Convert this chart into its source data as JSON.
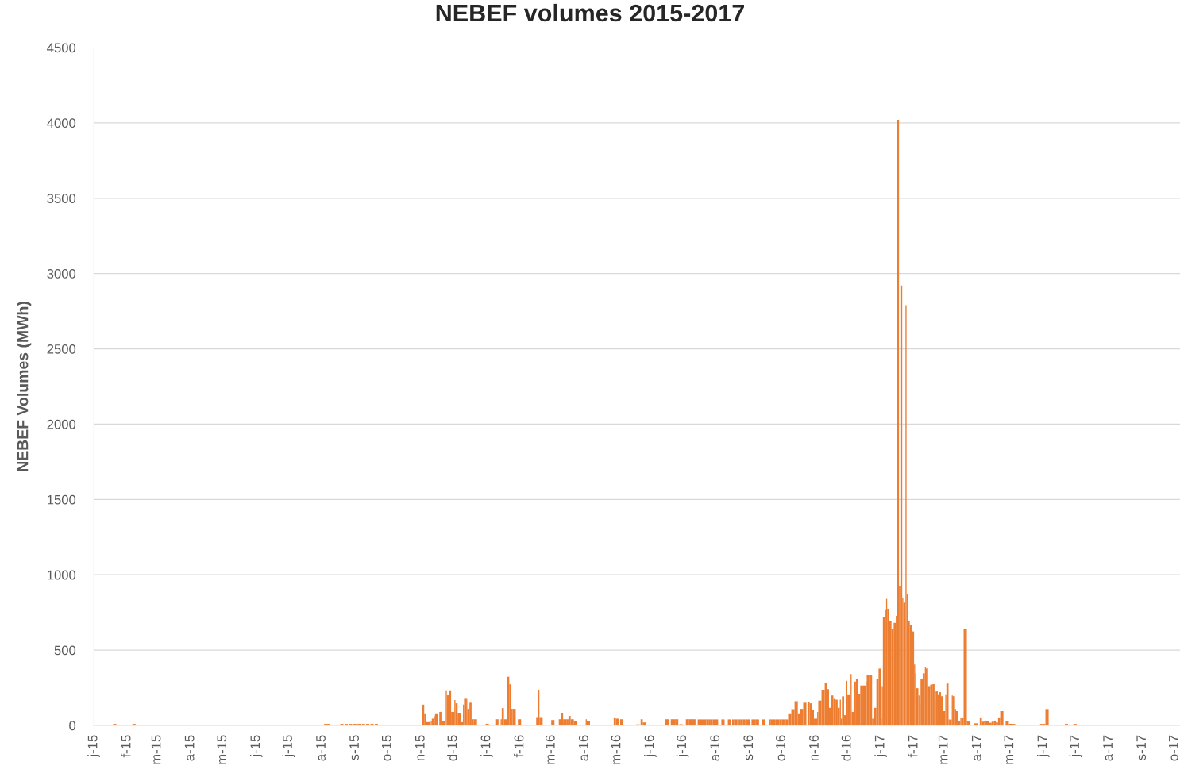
{
  "chart_data": {
    "type": "bar",
    "title": "NEBEF volumes 2015-2017",
    "ylabel": "NEBEF Volumes (MWh)",
    "x": [
      "2015-01-19",
      "2015-02-06",
      "2015-08-03",
      "2015-08-05",
      "2015-08-18",
      "2015-08-22",
      "2015-08-26",
      "2015-08-30",
      "2015-09-03",
      "2015-09-07",
      "2015-09-11",
      "2015-09-15",
      "2015-09-19",
      "2015-11-02",
      "2015-11-04",
      "2015-11-06",
      "2015-11-10",
      "2015-11-11",
      "2015-11-13",
      "2015-11-14",
      "2015-11-18",
      "2015-11-20",
      "2015-11-24",
      "2015-11-25",
      "2015-11-27",
      "2015-11-29",
      "2015-12-02",
      "2015-12-03",
      "2015-12-05",
      "2015-12-08",
      "2015-12-10",
      "2015-12-11",
      "2015-12-13",
      "2015-12-14",
      "2015-12-16",
      "2015-12-18",
      "2015-12-20",
      "2015-12-31",
      "2016-01-09",
      "2016-01-14",
      "2016-01-15",
      "2016-01-17",
      "2016-01-20",
      "2016-01-22",
      "2016-01-24",
      "2016-01-25",
      "2016-01-30",
      "2016-02-16",
      "2016-02-18",
      "2016-02-19",
      "2016-03-01",
      "2016-03-08",
      "2016-03-10",
      "2016-03-12",
      "2016-03-15",
      "2016-03-17",
      "2016-03-19",
      "2016-03-21",
      "2016-03-22",
      "2016-04-02",
      "2016-04-03",
      "2016-04-28",
      "2016-04-30",
      "2016-05-04",
      "2016-05-19",
      "2016-05-23",
      "2016-05-25",
      "2016-06-15",
      "2016-06-20",
      "2016-06-22",
      "2016-06-24",
      "2016-06-28",
      "2016-07-04",
      "2016-07-07",
      "2016-07-10",
      "2016-07-15",
      "2016-07-17",
      "2016-07-19",
      "2016-07-21",
      "2016-07-23",
      "2016-07-25",
      "2016-07-27",
      "2016-07-29",
      "2016-07-31",
      "2016-08-06",
      "2016-08-12",
      "2016-08-16",
      "2016-08-18",
      "2016-08-22",
      "2016-08-24",
      "2016-08-26",
      "2016-08-28",
      "2016-08-30",
      "2016-09-03",
      "2016-09-05",
      "2016-09-07",
      "2016-09-13",
      "2016-09-19",
      "2016-09-21",
      "2016-09-23",
      "2016-09-25",
      "2016-09-27",
      "2016-09-29",
      "2016-10-01",
      "2016-10-03",
      "2016-10-05",
      "2016-10-07",
      "2016-10-10",
      "2016-10-13",
      "2016-10-16",
      "2016-10-18",
      "2016-10-21",
      "2016-10-25",
      "2016-10-27",
      "2016-10-29",
      "2016-10-31",
      "2016-11-03",
      "2016-11-04",
      "2016-11-07",
      "2016-11-10",
      "2016-11-12",
      "2016-11-14",
      "2016-11-16",
      "2016-11-18",
      "2016-11-20",
      "2016-11-22",
      "2016-11-24",
      "2016-11-25",
      "2016-11-26",
      "2016-11-28",
      "2016-11-30",
      "2016-12-01",
      "2016-12-04",
      "2016-12-05",
      "2016-12-07",
      "2016-12-09",
      "2016-12-11",
      "2016-12-13",
      "2016-12-15",
      "2016-12-18",
      "2016-12-19",
      "2016-12-21",
      "2016-12-24",
      "2016-12-26",
      "2016-12-28",
      "2016-12-30",
      "2017-01-01",
      "2017-01-02",
      "2017-01-03",
      "2017-01-05",
      "2017-01-06",
      "2017-01-07",
      "2017-01-09",
      "2017-01-11",
      "2017-01-13",
      "2017-01-15",
      "2017-01-16",
      "2017-01-18",
      "2017-01-20",
      "2017-01-21",
      "2017-01-22",
      "2017-01-24",
      "2017-01-25",
      "2017-01-26",
      "2017-01-28",
      "2017-01-30",
      "2017-02-01",
      "2017-02-02",
      "2017-02-03",
      "2017-02-05",
      "2017-02-06",
      "2017-02-07",
      "2017-02-09",
      "2017-02-11",
      "2017-02-12",
      "2017-02-14",
      "2017-02-16",
      "2017-02-18",
      "2017-02-20",
      "2017-02-21",
      "2017-02-23",
      "2017-02-24",
      "2017-02-26",
      "2017-02-28",
      "2017-03-02",
      "2017-03-03",
      "2017-03-05",
      "2017-03-06",
      "2017-03-08",
      "2017-03-09",
      "2017-03-11",
      "2017-03-12",
      "2017-03-14",
      "2017-03-16",
      "2017-03-17",
      "2017-03-19",
      "2017-03-22",
      "2017-03-29",
      "2017-04-03",
      "2017-04-05",
      "2017-04-07",
      "2017-04-09",
      "2017-04-12",
      "2017-04-14",
      "2017-04-16",
      "2017-04-18",
      "2017-04-20",
      "2017-04-22",
      "2017-04-27",
      "2017-04-30",
      "2017-05-03",
      "2017-05-29",
      "2017-05-31",
      "2017-06-03",
      "2017-06-21",
      "2017-06-29"
    ],
    "values": [
      10,
      10,
      10,
      10,
      10,
      10,
      10,
      10,
      10,
      10,
      10,
      10,
      10,
      138,
      75,
      22,
      30,
      45,
      60,
      75,
      90,
      27,
      228,
      200,
      228,
      90,
      168,
      147,
      82,
      22,
      138,
      177,
      177,
      110,
      151,
      41,
      41,
      11,
      41,
      41,
      115,
      41,
      323,
      273,
      110,
      110,
      41,
      50,
      233,
      50,
      36,
      41,
      81,
      41,
      41,
      63,
      41,
      41,
      30,
      41,
      30,
      48,
      45,
      41,
      7,
      41,
      20,
      41,
      41,
      41,
      41,
      8,
      41,
      41,
      41,
      40,
      40,
      40,
      40,
      40,
      40,
      40,
      40,
      40,
      40,
      40,
      40,
      40,
      40,
      40,
      40,
      40,
      40,
      40,
      40,
      40,
      40,
      40,
      40,
      40,
      40,
      40,
      40,
      40,
      40,
      40,
      75,
      108,
      161,
      75,
      110,
      151,
      155,
      147,
      104,
      45,
      90,
      165,
      233,
      282,
      241,
      117,
      199,
      176,
      171,
      117,
      171,
      45,
      193,
      68,
      296,
      201,
      341,
      90,
      291,
      306,
      206,
      265,
      265,
      290,
      337,
      332,
      45,
      117,
      309,
      377,
      45,
      255,
      721,
      770,
      840,
      775,
      694,
      641,
      681,
      727,
      4020,
      923,
      2920,
      843,
      815,
      2790,
      870,
      694,
      669,
      624,
      404,
      346,
      247,
      199,
      147,
      308,
      346,
      385,
      378,
      256,
      271,
      274,
      163,
      226,
      202,
      221,
      194,
      95,
      202,
      278,
      39,
      39,
      199,
      194,
      109,
      95,
      27,
      48,
      48,
      642,
      27,
      14,
      48,
      25,
      27,
      27,
      18,
      25,
      32,
      20,
      48,
      95,
      27,
      11,
      10,
      10,
      10,
      109,
      10,
      10
    ],
    "color": "#ed7d31",
    "xlim": [
      "2015-01-01",
      "2017-10-06"
    ],
    "xticks": [
      {
        "value": "2015-01-01",
        "label": "j-15"
      },
      {
        "value": "2015-02-01",
        "label": "f-15"
      },
      {
        "value": "2015-03-01",
        "label": "m-15"
      },
      {
        "value": "2015-04-01",
        "label": "a-15"
      },
      {
        "value": "2015-05-01",
        "label": "m-15"
      },
      {
        "value": "2015-06-01",
        "label": "j-15"
      },
      {
        "value": "2015-07-01",
        "label": "j-15"
      },
      {
        "value": "2015-08-01",
        "label": "a-15"
      },
      {
        "value": "2015-09-01",
        "label": "s-15"
      },
      {
        "value": "2015-10-01",
        "label": "o-15"
      },
      {
        "value": "2015-11-01",
        "label": "n-15"
      },
      {
        "value": "2015-12-01",
        "label": "d-15"
      },
      {
        "value": "2016-01-01",
        "label": "j-16"
      },
      {
        "value": "2016-02-01",
        "label": "f-16"
      },
      {
        "value": "2016-03-01",
        "label": "m-16"
      },
      {
        "value": "2016-04-01",
        "label": "a-16"
      },
      {
        "value": "2016-05-01",
        "label": "m-16"
      },
      {
        "value": "2016-06-01",
        "label": "j-16"
      },
      {
        "value": "2016-07-01",
        "label": "j-16"
      },
      {
        "value": "2016-08-01",
        "label": "a-16"
      },
      {
        "value": "2016-09-01",
        "label": "s-16"
      },
      {
        "value": "2016-10-01",
        "label": "o-16"
      },
      {
        "value": "2016-11-01",
        "label": "n-16"
      },
      {
        "value": "2016-12-01",
        "label": "d-16"
      },
      {
        "value": "2017-01-01",
        "label": "j-17"
      },
      {
        "value": "2017-02-01",
        "label": "f-17"
      },
      {
        "value": "2017-03-01",
        "label": "m-17"
      },
      {
        "value": "2017-04-01",
        "label": "a-17"
      },
      {
        "value": "2017-05-01",
        "label": "m-17"
      },
      {
        "value": "2017-06-01",
        "label": "j-17"
      },
      {
        "value": "2017-07-01",
        "label": "j-17"
      },
      {
        "value": "2017-08-01",
        "label": "a-17"
      },
      {
        "value": "2017-09-01",
        "label": "s-17"
      },
      {
        "value": "2017-10-01",
        "label": "o-17"
      }
    ],
    "ylim": [
      0,
      4500
    ],
    "yticks": [
      0,
      500,
      1000,
      1500,
      2000,
      2500,
      3000,
      3500,
      4000,
      4500
    ],
    "grid": "y"
  }
}
